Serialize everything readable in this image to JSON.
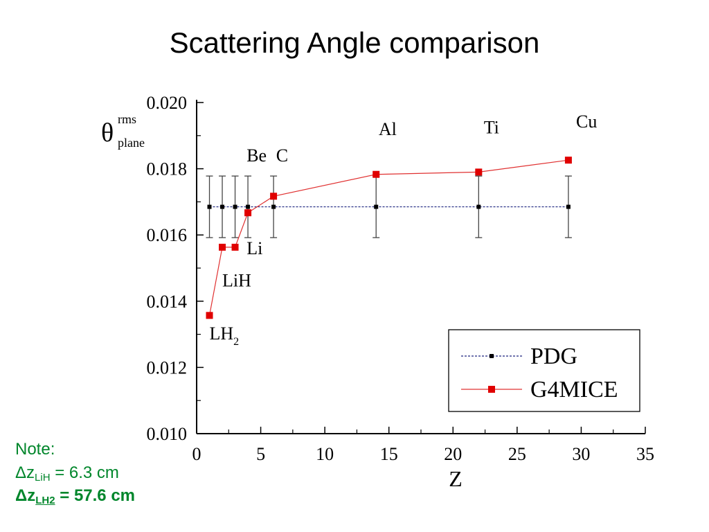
{
  "slide": {
    "title": "Scattering Angle comparison"
  },
  "notes": {
    "line1": "Note:",
    "line2": {
      "symbol": "Δz",
      "sub": "LiH",
      "rest": " = 6.3 cm"
    },
    "line3": {
      "symbol": "Δz",
      "sub": "LH2",
      "rest": " = 57.6 cm"
    }
  },
  "chart_data": {
    "type": "scatter",
    "title": "",
    "xlabel": "Z",
    "ylabel": {
      "base": "θ",
      "sup": "rms",
      "sub": "plane"
    },
    "xlim": [
      0,
      35
    ],
    "ylim": [
      0.01,
      0.02
    ],
    "x_ticks": [
      0,
      5,
      10,
      15,
      20,
      25,
      30,
      35
    ],
    "y_ticks": [
      "0.010",
      "0.012",
      "0.014",
      "0.016",
      "0.018",
      "0.020"
    ],
    "grid": false,
    "legend_position": "bottom-right",
    "series": [
      {
        "name": "PDG",
        "color": "#1a237e",
        "marker_color": "#000000",
        "line_style": "dashed",
        "x": [
          1,
          2,
          3,
          4,
          6,
          14,
          22,
          29
        ],
        "y": [
          0.01685,
          0.01685,
          0.01685,
          0.01685,
          0.01685,
          0.01685,
          0.01685,
          0.01685
        ],
        "error": [
          0.00093,
          0.00093,
          0.00093,
          0.00093,
          0.00093,
          0.00093,
          0.00093,
          0.00093
        ]
      },
      {
        "name": "G4MICE",
        "color": "#e03030",
        "marker_color": "#e00000",
        "line_style": "solid",
        "x": [
          1,
          2,
          3,
          4,
          6,
          14,
          22,
          29
        ],
        "y": [
          0.01357,
          0.01563,
          0.01563,
          0.01667,
          0.01717,
          0.01783,
          0.0179,
          0.01826
        ]
      }
    ],
    "annotations": [
      {
        "text": "LH",
        "sub": "2",
        "x": 1.0,
        "y": 0.01285
      },
      {
        "text": "LiH",
        "sub": "",
        "x": 2.0,
        "y": 0.01445
      },
      {
        "text": "Li",
        "sub": "",
        "x": 3.9,
        "y": 0.01542
      },
      {
        "text": "Be",
        "sub": "",
        "x": 3.9,
        "y": 0.01822
      },
      {
        "text": "C",
        "sub": "",
        "x": 6.2,
        "y": 0.01822
      },
      {
        "text": "Al",
        "sub": "",
        "x": 14.2,
        "y": 0.01902
      },
      {
        "text": "Ti",
        "sub": "",
        "x": 22.4,
        "y": 0.01907
      },
      {
        "text": "Cu",
        "sub": "",
        "x": 29.6,
        "y": 0.01925
      }
    ]
  }
}
